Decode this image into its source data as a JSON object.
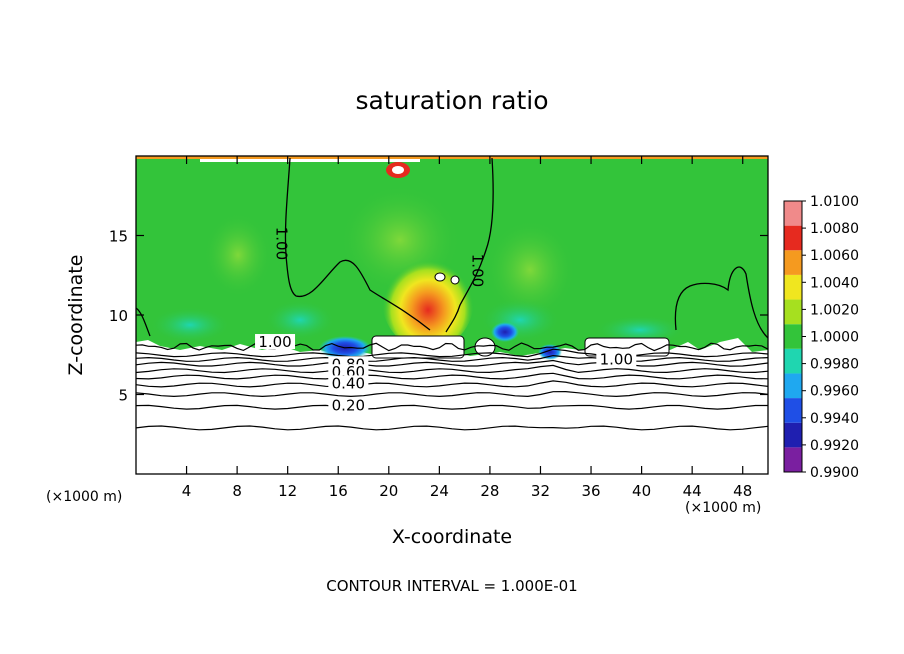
{
  "chart_data": {
    "type": "heatmap",
    "title": "saturation ratio",
    "xlabel": "X-coordinate",
    "ylabel": "Z-coordinate",
    "x_unit_label": "(×1000 m)",
    "footer": "CONTOUR INTERVAL = 1.000E-01",
    "xlim": [
      0,
      50
    ],
    "ylim": [
      0,
      20
    ],
    "x_ticks": [
      4,
      8,
      12,
      16,
      20,
      24,
      28,
      32,
      36,
      40,
      44,
      48
    ],
    "y_ticks": [
      5,
      10,
      15
    ],
    "colorbar": {
      "levels": [
        0.99,
        0.992,
        0.994,
        0.996,
        0.998,
        1.0,
        1.002,
        1.004,
        1.006,
        1.008,
        1.01
      ],
      "labels": [
        "0.9900",
        "0.9920",
        "0.9940",
        "0.9960",
        "0.9980",
        "1.0000",
        "1.0020",
        "1.0040",
        "1.0060",
        "1.0080",
        "1.0100"
      ],
      "colors": [
        "#7a1fa0",
        "#1f1fb0",
        "#1f4fe6",
        "#1fa8f0",
        "#1fd6b0",
        "#33c43a",
        "#a6e01f",
        "#f0e61f",
        "#f59a1f",
        "#e62a1f",
        "#f08a8a"
      ]
    },
    "contour_labels": [
      {
        "text": "1.00",
        "x": 11.5,
        "z": 14.5,
        "rotated": true
      },
      {
        "text": "1.00",
        "x": 27,
        "z": 12.8,
        "rotated": true
      },
      {
        "text": "1.00",
        "x": 11,
        "z": 8.3,
        "rotated": false
      },
      {
        "text": "1.00",
        "x": 38,
        "z": 7.2,
        "rotated": false
      },
      {
        "text": "0.80",
        "x": 16.8,
        "z": 6.9,
        "rotated": false
      },
      {
        "text": "0.60",
        "x": 16.8,
        "z": 6.4,
        "rotated": false
      },
      {
        "text": "0.40",
        "x": 16.8,
        "z": 5.7,
        "rotated": false
      },
      {
        "text": "0.20",
        "x": 16.8,
        "z": 4.3,
        "rotated": false
      }
    ],
    "low_contours_z": [
      2.9,
      4.2,
      5.0,
      5.6,
      6.1,
      6.5,
      6.9,
      7.2,
      7.5
    ],
    "cloud_base_z": 8.0,
    "grid": false
  }
}
